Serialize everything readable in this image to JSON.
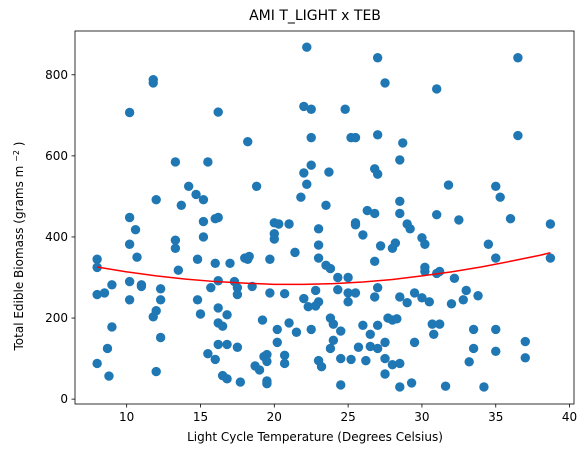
{
  "chart_data": {
    "type": "scatter",
    "title": "AMI T_LIGHT x TEB",
    "xlabel": "Light Cycle Temperature (Degrees Celsius)",
    "ylabel": "Total Edible Biomass (grams m",
    "ylabel_sup": "−2",
    "ylabel_suffix": ")",
    "xlim": [
      6.5,
      40.3
    ],
    "ylim": [
      -12,
      908
    ],
    "x_ticks": [
      10,
      15,
      20,
      25,
      30,
      35,
      40
    ],
    "x_tick_labels": [
      "10",
      "15",
      "20",
      "25",
      "30",
      "35",
      "40"
    ],
    "y_ticks": [
      0,
      200,
      400,
      600,
      800
    ],
    "y_tick_labels": [
      "0",
      "200",
      "400",
      "600",
      "800"
    ],
    "grid": false,
    "colors": {
      "points": "#1f77b4",
      "trend": "#ff0000",
      "axes": "#000000"
    },
    "series": [
      {
        "kind": "scatter",
        "points": [
          [
            8.0,
            345
          ],
          [
            8.0,
            325
          ],
          [
            8.0,
            258
          ],
          [
            8.0,
            88
          ],
          [
            8.5,
            262
          ],
          [
            8.7,
            125
          ],
          [
            8.8,
            57
          ],
          [
            9.0,
            178
          ],
          [
            9.0,
            282
          ],
          [
            10.2,
            707
          ],
          [
            10.2,
            448
          ],
          [
            10.2,
            382
          ],
          [
            10.2,
            290
          ],
          [
            10.2,
            245
          ],
          [
            10.6,
            418
          ],
          [
            10.7,
            350
          ],
          [
            11.0,
            282
          ],
          [
            11.0,
            278
          ],
          [
            11.8,
            788
          ],
          [
            11.8,
            780
          ],
          [
            11.8,
            203
          ],
          [
            12.0,
            492
          ],
          [
            12.0,
            218
          ],
          [
            12.0,
            68
          ],
          [
            12.3,
            272
          ],
          [
            12.3,
            245
          ],
          [
            12.3,
            152
          ],
          [
            13.3,
            585
          ],
          [
            13.3,
            372
          ],
          [
            13.3,
            392
          ],
          [
            13.5,
            318
          ],
          [
            13.7,
            478
          ],
          [
            14.2,
            525
          ],
          [
            14.7,
            505
          ],
          [
            14.8,
            345
          ],
          [
            14.8,
            245
          ],
          [
            15.0,
            210
          ],
          [
            15.2,
            492
          ],
          [
            15.2,
            438
          ],
          [
            15.2,
            400
          ],
          [
            15.5,
            585
          ],
          [
            15.5,
            112
          ],
          [
            15.7,
            275
          ],
          [
            16.0,
            445
          ],
          [
            16.0,
            335
          ],
          [
            16.0,
            98
          ],
          [
            16.2,
            448
          ],
          [
            16.2,
            708
          ],
          [
            16.2,
            292
          ],
          [
            16.2,
            225
          ],
          [
            16.2,
            188
          ],
          [
            16.2,
            135
          ],
          [
            16.5,
            180
          ],
          [
            16.5,
            58
          ],
          [
            16.8,
            208
          ],
          [
            16.8,
            135
          ],
          [
            16.8,
            50
          ],
          [
            17.0,
            335
          ],
          [
            17.3,
            290
          ],
          [
            17.5,
            275
          ],
          [
            17.5,
            258
          ],
          [
            17.5,
            128
          ],
          [
            17.7,
            42
          ],
          [
            18.0,
            348
          ],
          [
            18.2,
            635
          ],
          [
            18.2,
            345
          ],
          [
            18.3,
            352
          ],
          [
            18.5,
            278
          ],
          [
            18.7,
            82
          ],
          [
            18.8,
            525
          ],
          [
            19.0,
            72
          ],
          [
            19.2,
            195
          ],
          [
            19.3,
            105
          ],
          [
            19.5,
            110
          ],
          [
            19.5,
            93
          ],
          [
            19.5,
            45
          ],
          [
            19.5,
            38
          ],
          [
            19.7,
            345
          ],
          [
            19.7,
            262
          ],
          [
            20.0,
            408
          ],
          [
            20.0,
            395
          ],
          [
            20.0,
            435
          ],
          [
            20.2,
            172
          ],
          [
            20.2,
            140
          ],
          [
            20.3,
            432
          ],
          [
            20.7,
            260
          ],
          [
            20.7,
            108
          ],
          [
            20.7,
            88
          ],
          [
            21.0,
            432
          ],
          [
            21.0,
            188
          ],
          [
            21.4,
            362
          ],
          [
            21.5,
            165
          ],
          [
            21.8,
            498
          ],
          [
            22.0,
            722
          ],
          [
            22.0,
            558
          ],
          [
            22.0,
            248
          ],
          [
            22.2,
            868
          ],
          [
            22.2,
            530
          ],
          [
            22.3,
            228
          ],
          [
            22.5,
            715
          ],
          [
            22.5,
            645
          ],
          [
            22.5,
            577
          ],
          [
            22.5,
            172
          ],
          [
            22.8,
            268
          ],
          [
            22.8,
            230
          ],
          [
            23.0,
            420
          ],
          [
            23.0,
            380
          ],
          [
            23.0,
            348
          ],
          [
            23.0,
            240
          ],
          [
            23.0,
            95
          ],
          [
            23.2,
            80
          ],
          [
            23.5,
            478
          ],
          [
            23.5,
            330
          ],
          [
            23.7,
            560
          ],
          [
            23.8,
            322
          ],
          [
            23.8,
            200
          ],
          [
            23.8,
            125
          ],
          [
            24.0,
            185
          ],
          [
            24.0,
            145
          ],
          [
            24.3,
            300
          ],
          [
            24.3,
            270
          ],
          [
            24.5,
            168
          ],
          [
            24.5,
            100
          ],
          [
            24.5,
            35
          ],
          [
            24.8,
            715
          ],
          [
            25.0,
            300
          ],
          [
            25.0,
            262
          ],
          [
            25.0,
            240
          ],
          [
            25.2,
            645
          ],
          [
            25.2,
            98
          ],
          [
            25.5,
            645
          ],
          [
            25.5,
            435
          ],
          [
            25.5,
            430
          ],
          [
            25.5,
            262
          ],
          [
            25.7,
            128
          ],
          [
            26.0,
            405
          ],
          [
            26.0,
            182
          ],
          [
            26.2,
            95
          ],
          [
            26.3,
            465
          ],
          [
            26.5,
            160
          ],
          [
            26.5,
            130
          ],
          [
            26.8,
            568
          ],
          [
            26.8,
            458
          ],
          [
            26.8,
            340
          ],
          [
            26.8,
            252
          ],
          [
            27.0,
            842
          ],
          [
            27.0,
            652
          ],
          [
            27.0,
            555
          ],
          [
            27.0,
            275
          ],
          [
            27.0,
            182
          ],
          [
            27.0,
            125
          ],
          [
            27.2,
            378
          ],
          [
            27.5,
            780
          ],
          [
            27.5,
            140
          ],
          [
            27.5,
            100
          ],
          [
            27.5,
            62
          ],
          [
            27.7,
            200
          ],
          [
            28.0,
            372
          ],
          [
            28.0,
            195
          ],
          [
            28.0,
            85
          ],
          [
            28.2,
            385
          ],
          [
            28.3,
            198
          ],
          [
            28.5,
            590
          ],
          [
            28.5,
            488
          ],
          [
            28.5,
            458
          ],
          [
            28.5,
            252
          ],
          [
            28.5,
            88
          ],
          [
            28.5,
            30
          ],
          [
            28.7,
            632
          ],
          [
            29.0,
            432
          ],
          [
            29.0,
            238
          ],
          [
            29.2,
            420
          ],
          [
            29.3,
            40
          ],
          [
            29.5,
            262
          ],
          [
            29.5,
            140
          ],
          [
            30.0,
            398
          ],
          [
            30.0,
            250
          ],
          [
            30.2,
            382
          ],
          [
            30.2,
            325
          ],
          [
            30.2,
            315
          ],
          [
            30.5,
            240
          ],
          [
            30.7,
            185
          ],
          [
            30.8,
            160
          ],
          [
            31.0,
            765
          ],
          [
            31.0,
            455
          ],
          [
            31.0,
            310
          ],
          [
            31.2,
            315
          ],
          [
            31.2,
            185
          ],
          [
            31.6,
            32
          ],
          [
            31.8,
            528
          ],
          [
            32.0,
            235
          ],
          [
            32.2,
            298
          ],
          [
            32.5,
            442
          ],
          [
            32.8,
            245
          ],
          [
            33.0,
            268
          ],
          [
            33.2,
            92
          ],
          [
            33.5,
            172
          ],
          [
            33.5,
            125
          ],
          [
            33.8,
            255
          ],
          [
            34.2,
            30
          ],
          [
            34.5,
            382
          ],
          [
            35.0,
            525
          ],
          [
            35.0,
            348
          ],
          [
            35.0,
            172
          ],
          [
            35.0,
            118
          ],
          [
            35.3,
            498
          ],
          [
            36.0,
            445
          ],
          [
            36.5,
            842
          ],
          [
            36.5,
            650
          ],
          [
            37.0,
            142
          ],
          [
            37.0,
            102
          ],
          [
            38.7,
            432
          ],
          [
            38.7,
            348
          ]
        ]
      },
      {
        "kind": "line",
        "x": [
          8.0,
          10.0,
          12.0,
          14.0,
          16.0,
          18.0,
          20.0,
          21.0,
          22.0,
          24.0,
          26.0,
          28.0,
          30.0,
          32.0,
          34.0,
          36.0,
          38.0,
          38.7
        ],
        "y": [
          326,
          314,
          304,
          296,
          290,
          286,
          283,
          283,
          283,
          285,
          289,
          295,
          304,
          314,
          326,
          340,
          355,
          361
        ]
      }
    ]
  }
}
